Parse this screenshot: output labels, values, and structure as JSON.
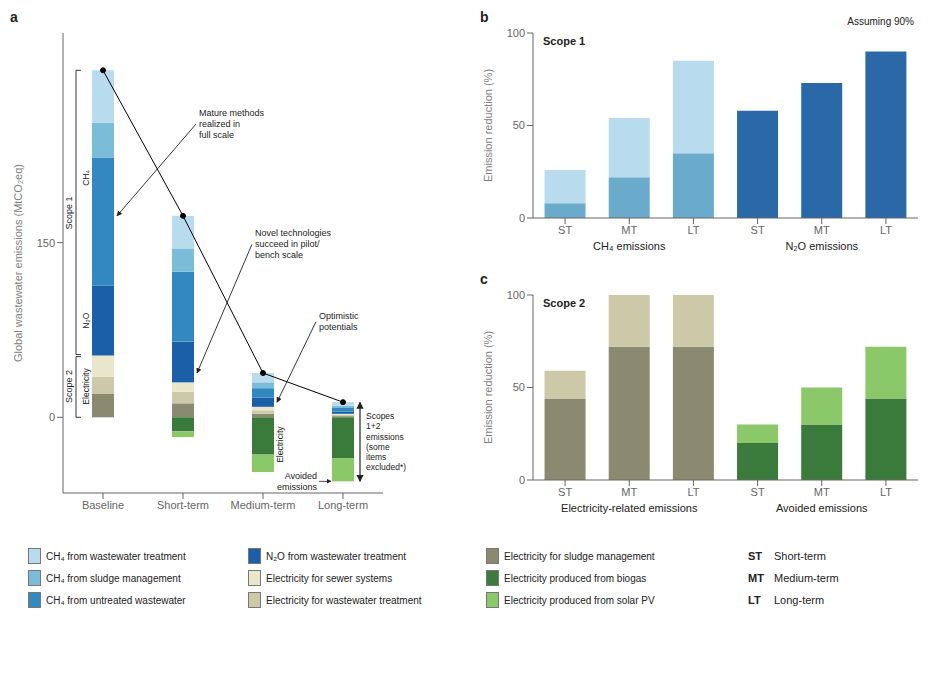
{
  "chart_data": [
    {
      "type": "bar",
      "stacked": true,
      "categories": [
        "Baseline",
        "Short-term",
        "Medium-term",
        "Long-term"
      ],
      "ylabel": "Global wastewater emissions (MtCO₂eq)",
      "ylim": [
        -65,
        330
      ],
      "yticks": [
        0,
        150
      ],
      "series": [
        {
          "name": "Electricity for sludge management",
          "color": "#8a8a70",
          "values": [
            20,
            12,
            3,
            1
          ]
        },
        {
          "name": "Electricity for wastewater treatment",
          "color": "#ccc8a8",
          "values": [
            15,
            10,
            3,
            1
          ]
        },
        {
          "name": "Electricity for sewer systems",
          "color": "#eae6cc",
          "values": [
            18,
            8,
            3,
            1
          ]
        },
        {
          "name": "N₂O from wastewater treatment",
          "color": "#1a5fa8",
          "values": [
            60,
            35,
            8,
            2
          ]
        },
        {
          "name": "CH₄ from untreated wastewater",
          "color": "#3388c0",
          "values": [
            110,
            60,
            8,
            3
          ]
        },
        {
          "name": "CH₄ from sludge management",
          "color": "#7bbdd9",
          "values": [
            30,
            20,
            5,
            2
          ]
        },
        {
          "name": "CH₄ from wastewater treatment",
          "color": "#b8dced",
          "values": [
            45,
            28,
            8,
            3
          ]
        },
        {
          "name": "Electricity produced from biogas",
          "color": "#3a7a3a",
          "values": [
            0,
            -12,
            -32,
            -35
          ]
        },
        {
          "name": "Electricity produced from solar PV",
          "color": "#8ac86a",
          "values": [
            0,
            -5,
            -15,
            -20
          ]
        },
        {
          "type": "line",
          "color": "#000000",
          "marker": "dot",
          "values": [
            298,
            173,
            38,
            13
          ]
        }
      ],
      "annotations": [
        "a",
        "Scope 1",
        "CH₄",
        "N₂O",
        "Scope 2",
        "Electricity",
        "Mature methods\nrealized in\nfull scale",
        "Novel technologies\nsucceed in pilot/\nbench scale",
        "Optimistic\npotentials",
        "Scopes\n1+2\nemissions\n(some\nitems\nexcluded*)",
        "Electricity",
        "Avoided\nemissions",
        "ST",
        "Short-term",
        "MT",
        "Medium-term",
        "LT",
        "Long-term"
      ]
    },
    {
      "type": "bar",
      "stacked": true,
      "categories": [
        "ST",
        "MT",
        "LT",
        "ST",
        "MT",
        "LT"
      ],
      "ylabel": "Emission reduction (%)",
      "ylim": [
        0,
        100
      ],
      "yticks": [
        0,
        50,
        100
      ],
      "series": [
        {
          "colors": [
            "#6aaacb",
            "#6aaacb",
            "#6aaacb",
            "#2a68a8",
            "#2a68a8",
            "#2a68a8"
          ],
          "values": [
            8,
            22,
            35,
            58,
            73,
            90
          ]
        },
        {
          "colors": [
            "#b8dced",
            "#b8dced",
            "#b8dced",
            "#6898c8",
            "#6898c8",
            "#6898c8"
          ],
          "values": [
            18,
            32,
            50,
            0,
            0,
            0
          ]
        }
      ],
      "annotations": [
        "b",
        "Scope 1",
        "Assuming 90%",
        "CH₄ emissions",
        "N₂O emissions"
      ]
    },
    {
      "type": "bar",
      "stacked": true,
      "categories": [
        "ST",
        "MT",
        "LT",
        "ST",
        "MT",
        "LT"
      ],
      "ylabel": "Emission reduction (%)",
      "ylim": [
        0,
        100
      ],
      "yticks": [
        0,
        50,
        100
      ],
      "series": [
        {
          "colors": [
            "#8a8a70",
            "#8a8a70",
            "#8a8a70",
            "#3a7a3a",
            "#3a7a3a",
            "#3a7a3a"
          ],
          "values": [
            44,
            72,
            72,
            20,
            30,
            44
          ]
        },
        {
          "colors": [
            "#ccc8a8",
            "#ccc8a8",
            "#ccc8a8",
            "#8ac86a",
            "#8ac86a",
            "#8ac86a"
          ],
          "values": [
            15,
            28,
            28,
            10,
            20,
            28
          ]
        }
      ],
      "annotations": [
        "c",
        "Scope 2",
        "Electricity-related emissions",
        "Avoided emissions"
      ]
    }
  ]
}
